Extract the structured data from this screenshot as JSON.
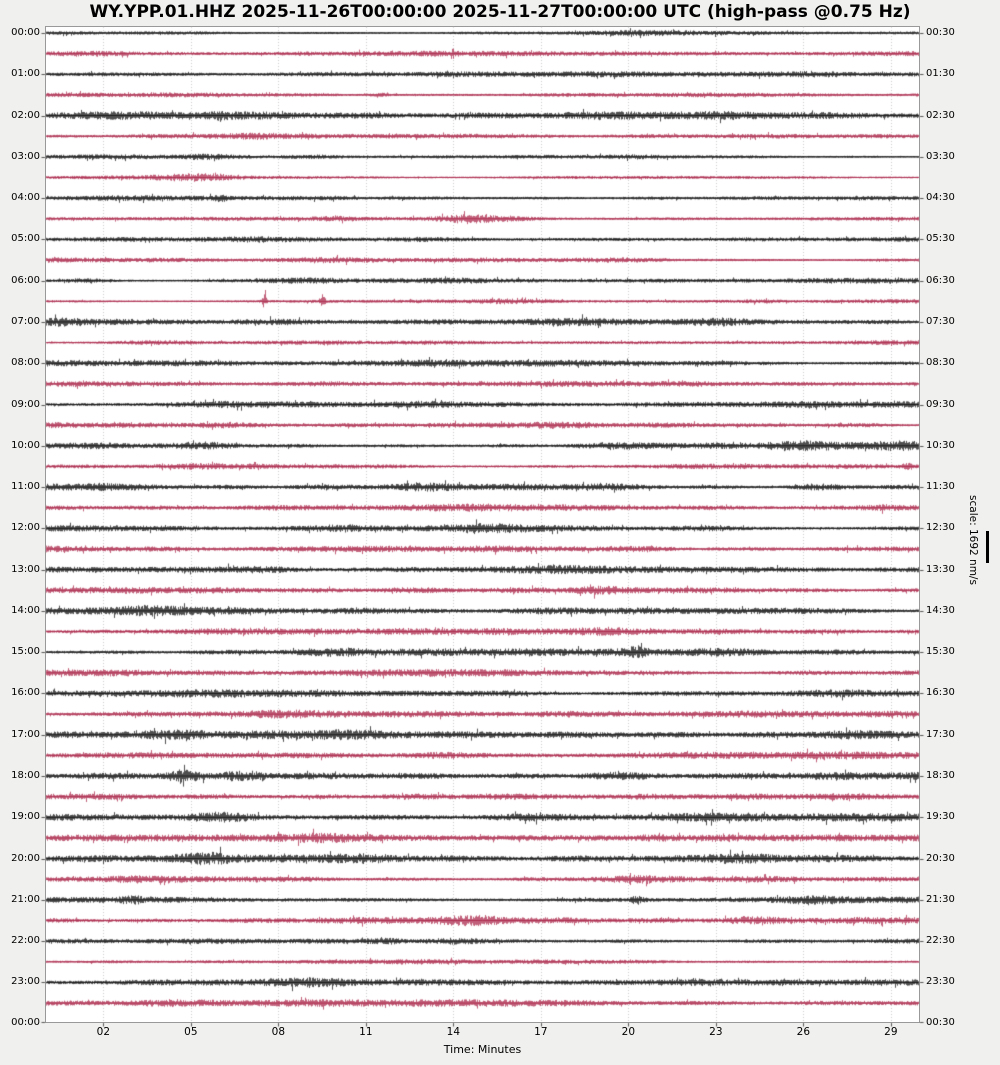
{
  "title": "WY.YPP.01.HHZ 2025-11-26T00:00:00 2025-11-27T00:00:00 UTC (high-pass @0.75 Hz)",
  "colors": {
    "background": "#f0f0ee",
    "plot_background": "#ffffff",
    "trace_black": "#141414",
    "trace_red": "#AC2B4D",
    "grid": "#cccccc",
    "border": "#999999",
    "tick": "#444444",
    "text": "#000000"
  },
  "chart_data": {
    "type": "line",
    "subtype": "helicorder-dayplot",
    "station": "WY.YPP.01.HHZ",
    "start_time": "2025-11-26T00:00:00",
    "end_time": "2025-11-27T00:00:00",
    "timezone": "UTC",
    "filter": "high-pass @0.75 Hz",
    "xlabel": "Time: Minutes",
    "scale_label": "scale: 1692 nm/s",
    "amplitude_scale_nm_per_s": 1692,
    "minutes_per_line": 30,
    "x_range": [
      0,
      30
    ],
    "x_ticks": [
      "02",
      "05",
      "08",
      "11",
      "14",
      "17",
      "20",
      "23",
      "26",
      "29"
    ],
    "x_grid": true,
    "left_labels": [
      "00:00",
      "01:00",
      "02:00",
      "03:00",
      "04:00",
      "05:00",
      "06:00",
      "07:00",
      "08:00",
      "09:00",
      "10:00",
      "11:00",
      "12:00",
      "13:00",
      "14:00",
      "15:00",
      "16:00",
      "17:00",
      "18:00",
      "19:00",
      "20:00",
      "21:00",
      "22:00",
      "23:00"
    ],
    "right_labels": [
      "00:30",
      "01:30",
      "02:30",
      "03:30",
      "04:30",
      "05:30",
      "06:30",
      "07:30",
      "08:30",
      "09:30",
      "10:30",
      "11:30",
      "12:30",
      "13:30",
      "14:30",
      "15:30",
      "16:30",
      "17:30",
      "18:30",
      "19:30",
      "20:30",
      "21:30",
      "22:30",
      "23:30"
    ],
    "bottom_left_label": "00:00",
    "bottom_right_label": "00:30",
    "rows": [
      {
        "time": "00:00",
        "color": "black",
        "base": 1.7,
        "bursts": [
          [
            21,
            1.2,
            1.5
          ]
        ]
      },
      {
        "time": "00:30",
        "color": "red",
        "base": 2.1,
        "bursts": [
          [
            1.5,
            1.5,
            1.0
          ],
          [
            9,
            0.8,
            1.0
          ]
        ]
      },
      {
        "time": "01:00",
        "color": "black",
        "base": 2.3,
        "bursts": [
          [
            2,
            1.2,
            1.5
          ],
          [
            26.5,
            1.5,
            0.8
          ]
        ]
      },
      {
        "time": "01:30",
        "color": "red",
        "base": 2.0,
        "bursts": [
          [
            11.5,
            1.5,
            0.3
          ],
          [
            24,
            1.0,
            1.0
          ]
        ]
      },
      {
        "time": "02:00",
        "color": "black",
        "base": 3.3,
        "bursts": [
          [
            6,
            2.5,
            0.15
          ],
          [
            1.5,
            1.0,
            1.0
          ]
        ]
      },
      {
        "time": "02:30",
        "color": "red",
        "base": 1.9,
        "bursts": [
          [
            7,
            1.5,
            0.8
          ],
          [
            14.5,
            1.0,
            0.8
          ]
        ]
      },
      {
        "time": "03:00",
        "color": "black",
        "base": 1.7,
        "bursts": [
          [
            5.5,
            1.2,
            0.6
          ],
          [
            9,
            0.8,
            0.6
          ],
          [
            20,
            0.8,
            0.5
          ]
        ]
      },
      {
        "time": "03:30",
        "color": "red",
        "base": 1.6,
        "bursts": [
          [
            5,
            2.2,
            0.9
          ],
          [
            6,
            1.2,
            0.6
          ]
        ]
      },
      {
        "time": "04:00",
        "color": "black",
        "base": 1.7,
        "bursts": [
          [
            6,
            3.0,
            0.12
          ],
          [
            3,
            1.0,
            0.8
          ]
        ]
      },
      {
        "time": "04:30",
        "color": "red",
        "base": 1.4,
        "bursts": [
          [
            10,
            1.6,
            0.5
          ],
          [
            14.6,
            3.6,
            0.8
          ],
          [
            16,
            1.2,
            0.8
          ]
        ]
      },
      {
        "time": "05:00",
        "color": "black",
        "base": 1.7,
        "bursts": [
          [
            7,
            1.2,
            1.0
          ],
          [
            13,
            0.8,
            0.8
          ]
        ]
      },
      {
        "time": "05:30",
        "color": "red",
        "base": 2.0,
        "bursts": [
          [
            9.8,
            1.8,
            1.2
          ],
          [
            20,
            0.8,
            1.0
          ]
        ]
      },
      {
        "time": "06:00",
        "color": "black",
        "base": 2.1,
        "bursts": [
          [
            1.5,
            1.8,
            0.6
          ],
          [
            9,
            1.4,
            0.8
          ],
          [
            14,
            0.8,
            0.8
          ]
        ]
      },
      {
        "time": "06:30",
        "color": "red",
        "base": 1.5,
        "bursts": [
          [
            7.5,
            7.0,
            0.06
          ],
          [
            9.5,
            9.0,
            0.06
          ],
          [
            16,
            1.2,
            0.8
          ],
          [
            24.5,
            1.0,
            0.5
          ]
        ]
      },
      {
        "time": "07:00",
        "color": "black",
        "base": 2.6,
        "bursts": [
          [
            0.5,
            2.0,
            0.5
          ],
          [
            8,
            1.0,
            0.8
          ],
          [
            18,
            1.2,
            1.0
          ],
          [
            23,
            1.5,
            0.6
          ]
        ]
      },
      {
        "time": "07:30",
        "color": "red",
        "base": 2.1,
        "bursts": [
          [
            4,
            1.0,
            1.0
          ],
          [
            21,
            0.8,
            1.0
          ]
        ]
      },
      {
        "time": "08:00",
        "color": "black",
        "base": 2.7,
        "bursts": [
          [
            4,
            1.2,
            1.0
          ],
          [
            14,
            0.8,
            1.0
          ]
        ]
      },
      {
        "time": "08:30",
        "color": "red",
        "base": 2.1,
        "bursts": [
          [
            9.5,
            1.0,
            0.8
          ],
          [
            22,
            0.8,
            0.8
          ]
        ]
      },
      {
        "time": "09:00",
        "color": "black",
        "base": 2.5,
        "bursts": [
          [
            6,
            1.2,
            0.8
          ],
          [
            13,
            1.2,
            0.8
          ],
          [
            26,
            1.0,
            0.8
          ]
        ]
      },
      {
        "time": "09:30",
        "color": "red",
        "base": 2.3,
        "bursts": [
          [
            6,
            1.6,
            0.6
          ],
          [
            17,
            1.0,
            1.0
          ],
          [
            27.5,
            1.2,
            0.8
          ]
        ]
      },
      {
        "time": "10:00",
        "color": "black",
        "base": 3.1,
        "bursts": [
          [
            5.5,
            1.8,
            0.8
          ],
          [
            20,
            1.8,
            1.0
          ],
          [
            25.8,
            2.2,
            0.8
          ],
          [
            29,
            1.5,
            0.6
          ]
        ]
      },
      {
        "time": "10:30",
        "color": "red",
        "base": 2.5,
        "bursts": [
          [
            5,
            1.0,
            1.0
          ],
          [
            29.6,
            3.0,
            0.15
          ]
        ]
      },
      {
        "time": "11:00",
        "color": "black",
        "base": 2.9,
        "bursts": [
          [
            2,
            1.5,
            0.8
          ],
          [
            13,
            1.6,
            0.8
          ],
          [
            19,
            1.5,
            0.8
          ],
          [
            26.5,
            2.0,
            0.6
          ]
        ]
      },
      {
        "time": "11:30",
        "color": "red",
        "base": 2.5,
        "bursts": [
          [
            7.5,
            1.0,
            0.8
          ],
          [
            15,
            1.0,
            1.0
          ],
          [
            29,
            1.5,
            0.6
          ]
        ]
      },
      {
        "time": "12:00",
        "color": "black",
        "base": 2.9,
        "bursts": [
          [
            10,
            1.5,
            0.8
          ],
          [
            15,
            2.2,
            0.9
          ],
          [
            22.5,
            1.5,
            0.8
          ]
        ]
      },
      {
        "time": "12:30",
        "color": "red",
        "base": 2.5,
        "bursts": [
          [
            10,
            1.0,
            1.0
          ],
          [
            20.5,
            1.2,
            0.8
          ]
        ]
      },
      {
        "time": "13:00",
        "color": "black",
        "base": 2.9,
        "bursts": [
          [
            7.5,
            2.0,
            0.9
          ],
          [
            17,
            1.0,
            1.0
          ]
        ]
      },
      {
        "time": "13:30",
        "color": "red",
        "base": 2.5,
        "bursts": [
          [
            12.5,
            1.0,
            0.8
          ],
          [
            19,
            1.8,
            0.5
          ]
        ]
      },
      {
        "time": "14:00",
        "color": "black",
        "base": 3.1,
        "bursts": [
          [
            3.5,
            1.8,
            0.8
          ],
          [
            11,
            1.0,
            1.0
          ],
          [
            17,
            1.5,
            0.8
          ]
        ]
      },
      {
        "time": "14:30",
        "color": "red",
        "base": 2.7,
        "bursts": [
          [
            6.5,
            1.2,
            1.0
          ],
          [
            19,
            1.6,
            0.8
          ]
        ]
      },
      {
        "time": "15:00",
        "color": "black",
        "base": 3.1,
        "bursts": [
          [
            10,
            1.8,
            0.8
          ],
          [
            20.3,
            3.5,
            0.2
          ],
          [
            23,
            1.5,
            0.8
          ]
        ]
      },
      {
        "time": "15:30",
        "color": "red",
        "base": 2.7,
        "bursts": [
          [
            2.5,
            1.5,
            0.8
          ],
          [
            13,
            1.0,
            1.0
          ]
        ]
      },
      {
        "time": "16:00",
        "color": "black",
        "base": 3.1,
        "bursts": [
          [
            5,
            1.2,
            1.0
          ],
          [
            16,
            1.0,
            1.0
          ],
          [
            27,
            1.2,
            0.8
          ]
        ]
      },
      {
        "time": "16:30",
        "color": "red",
        "base": 2.7,
        "bursts": [
          [
            8,
            1.0,
            1.0
          ],
          [
            17.5,
            1.4,
            0.8
          ]
        ]
      },
      {
        "time": "17:00",
        "color": "black",
        "base": 3.3,
        "bursts": [
          [
            4.5,
            1.8,
            0.8
          ],
          [
            10,
            1.8,
            0.9
          ],
          [
            27.5,
            2.0,
            0.8
          ]
        ]
      },
      {
        "time": "17:30",
        "color": "red",
        "base": 2.9,
        "bursts": [
          [
            13.5,
            1.5,
            0.9
          ],
          [
            23,
            1.0,
            1.0
          ]
        ]
      },
      {
        "time": "18:00",
        "color": "black",
        "base": 3.4,
        "bursts": [
          [
            4.7,
            5.0,
            0.35
          ],
          [
            4.75,
            6.0,
            0.06
          ],
          [
            6.8,
            3.0,
            0.5
          ],
          [
            19.5,
            1.8,
            0.9
          ]
        ]
      },
      {
        "time": "18:30",
        "color": "red",
        "base": 2.9,
        "bursts": [
          [
            12.5,
            1.5,
            0.8
          ],
          [
            15.5,
            1.5,
            0.8
          ],
          [
            27,
            1.0,
            0.8
          ]
        ]
      },
      {
        "time": "19:00",
        "color": "black",
        "base": 3.3,
        "bursts": [
          [
            6,
            2.6,
            0.7
          ],
          [
            16.5,
            1.8,
            0.9
          ],
          [
            23,
            1.0,
            1.0
          ]
        ]
      },
      {
        "time": "19:30",
        "color": "red",
        "base": 3.0,
        "bursts": [
          [
            9.5,
            1.8,
            0.8
          ],
          [
            21,
            1.8,
            0.7
          ],
          [
            23.2,
            1.8,
            0.6
          ]
        ]
      },
      {
        "time": "20:00",
        "color": "black",
        "base": 3.4,
        "bursts": [
          [
            5.5,
            3.0,
            0.6
          ],
          [
            11,
            2.2,
            0.7
          ],
          [
            24,
            2.6,
            0.7
          ]
        ]
      },
      {
        "time": "20:30",
        "color": "red",
        "base": 3.0,
        "bursts": [
          [
            3,
            1.8,
            0.8
          ],
          [
            20,
            1.5,
            0.8
          ]
        ]
      },
      {
        "time": "21:00",
        "color": "black",
        "base": 3.3,
        "bursts": [
          [
            3,
            2.2,
            0.3
          ],
          [
            20.3,
            3.5,
            0.15
          ],
          [
            26.3,
            1.8,
            0.6
          ]
        ]
      },
      {
        "time": "21:30",
        "color": "red",
        "base": 2.9,
        "bursts": [
          [
            14.7,
            2.6,
            0.7
          ],
          [
            24.3,
            2.2,
            0.7
          ]
        ]
      },
      {
        "time": "22:00",
        "color": "black",
        "base": 2.7,
        "bursts": [
          [
            11.7,
            1.8,
            0.4
          ],
          [
            14,
            1.5,
            0.6
          ]
        ]
      },
      {
        "time": "22:30",
        "color": "red",
        "base": 2.2,
        "bursts": [
          [
            12,
            0.8,
            0.8
          ],
          [
            19,
            0.8,
            0.8
          ]
        ]
      },
      {
        "time": "23:00",
        "color": "black",
        "base": 2.9,
        "bursts": [
          [
            9,
            1.6,
            0.8
          ],
          [
            22,
            1.8,
            1.0
          ]
        ]
      },
      {
        "time": "23:30",
        "color": "red",
        "base": 2.9,
        "bursts": [
          [
            4,
            1.0,
            1.0
          ],
          [
            16,
            0.8,
            1.0
          ]
        ]
      }
    ]
  }
}
